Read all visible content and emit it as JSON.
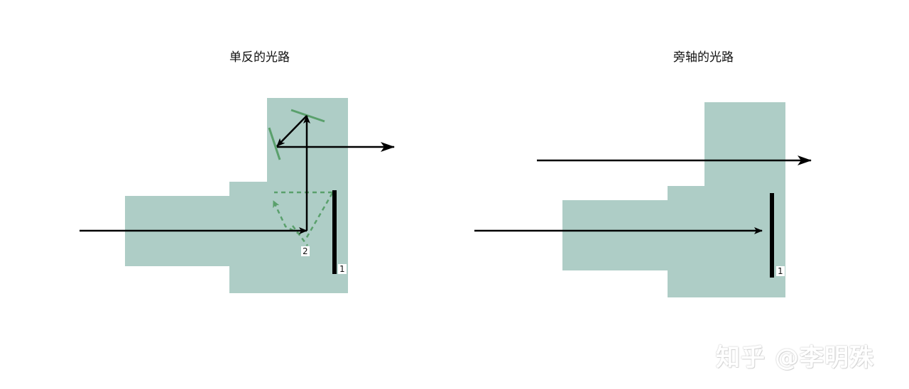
{
  "diagrams": {
    "left": {
      "title": "单反的光路",
      "mirror_label": "2",
      "sensor_label": "1"
    },
    "right": {
      "title": "旁轴的光路",
      "sensor_label": "1"
    }
  },
  "watermark": "知乎 @李明殊",
  "colors": {
    "body": "#aecdc6",
    "ray": "#000000",
    "mirror": "#5aa06c",
    "sensor": "#000000",
    "background": "#ffffff"
  }
}
